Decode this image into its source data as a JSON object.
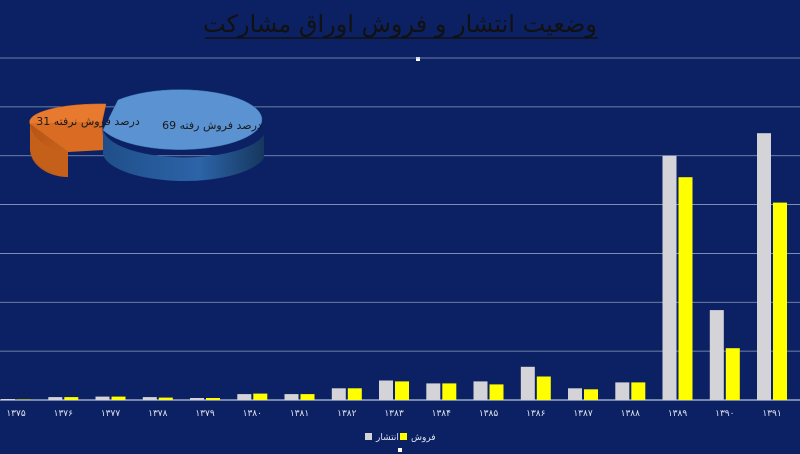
{
  "chart_data": [
    {
      "type": "bar",
      "title": "وضعیت انتشار و فروش اوراق مشارکت",
      "xlabel": "",
      "ylabel": "",
      "grid": true,
      "legend_position": "bottom",
      "categories": [
        "۱۳۷۵",
        "۱۳۷۶",
        "۱۳۷۷",
        "۱۳۷۸",
        "۱۳۷۹",
        "۱۳۸۰",
        "۱۳۸۱",
        "۱۳۸۲",
        "۱۳۸۳",
        "۱۳۸۴",
        "۱۳۸۵",
        "۱۳۸۶",
        "۱۳۸۷",
        "۱۳۸۸",
        "۱۳۸۹",
        "۱۳۹۰",
        "۱۳۹۱"
      ],
      "ylim": [
        0,
        350
      ],
      "gridlines": [
        0,
        50,
        100,
        150,
        200,
        250,
        300,
        350
      ],
      "series": [
        {
          "name": "انتشار",
          "color": "#d4d4d8",
          "values": [
            1,
            3,
            3.5,
            3,
            2,
            6,
            6,
            12,
            20,
            17,
            19,
            34,
            12,
            18,
            250,
            92,
            273
          ]
        },
        {
          "name": "فروش",
          "color": "#ffff00",
          "values": [
            0.5,
            3,
            3.5,
            2.5,
            2,
            6.5,
            6,
            12,
            19,
            17,
            16,
            24,
            11,
            18,
            228,
            53,
            202
          ]
        }
      ]
    },
    {
      "type": "pie",
      "slices": [
        {
          "label": "69 درصد فروش رفته",
          "value": 69,
          "color": "#4f86c6"
        },
        {
          "label": "31 درصد فروش نرفته",
          "value": 31,
          "color": "#e87a30"
        }
      ]
    }
  ]
}
